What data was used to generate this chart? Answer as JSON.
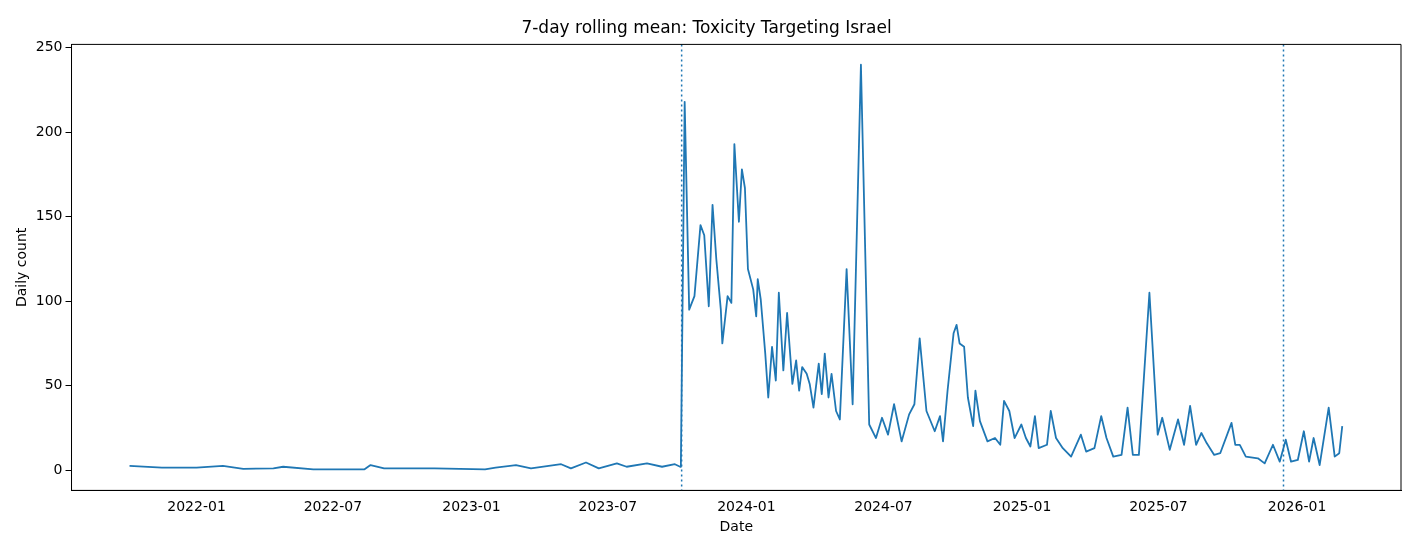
{
  "chart_data": {
    "type": "line",
    "title": "7-day rolling mean: Toxicity Targeting Israel",
    "xlabel": "Date",
    "ylabel": "Daily count",
    "x": [
      "2021-10-04",
      "2021-11-16",
      "2022-01-01",
      "2022-02-05",
      "2022-03-04",
      "2022-04-13",
      "2022-04-26",
      "2022-06-05",
      "2022-08-12",
      "2022-08-20",
      "2022-09-07",
      "2022-11-13",
      "2023-01-19",
      "2023-02-02",
      "2023-03-01",
      "2023-03-21",
      "2023-04-30",
      "2023-05-13",
      "2023-06-02",
      "2023-06-19",
      "2023-07-13",
      "2023-07-26",
      "2023-08-22",
      "2023-09-11",
      "2023-09-28",
      "2023-10-05",
      "2023-10-06",
      "2023-10-11",
      "2023-10-17",
      "2023-10-24",
      "2023-11-01",
      "2023-11-06",
      "2023-11-12",
      "2023-11-17",
      "2023-11-22",
      "2023-11-28",
      "2023-11-30",
      "2023-12-07",
      "2023-12-12",
      "2023-12-16",
      "2023-12-22",
      "2023-12-26",
      "2023-12-30",
      "2024-01-03",
      "2024-01-10",
      "2024-01-14",
      "2024-01-16",
      "2024-01-20",
      "2024-01-26",
      "2024-01-30",
      "2024-02-04",
      "2024-02-09",
      "2024-02-13",
      "2024-02-19",
      "2024-02-24",
      "2024-03-02",
      "2024-03-07",
      "2024-03-11",
      "2024-03-15",
      "2024-03-21",
      "2024-03-25",
      "2024-03-30",
      "2024-04-06",
      "2024-04-10",
      "2024-04-14",
      "2024-04-19",
      "2024-04-23",
      "2024-04-29",
      "2024-05-04",
      "2024-05-13",
      "2024-05-21",
      "2024-06-01",
      "2024-06-12",
      "2024-06-21",
      "2024-06-29",
      "2024-07-07",
      "2024-07-15",
      "2024-07-25",
      "2024-08-04",
      "2024-08-11",
      "2024-08-18",
      "2024-08-27",
      "2024-09-07",
      "2024-09-14",
      "2024-09-18",
      "2024-09-24",
      "2024-10-02",
      "2024-10-06",
      "2024-10-10",
      "2024-10-16",
      "2024-10-21",
      "2024-10-28",
      "2024-10-31",
      "2024-11-06",
      "2024-11-16",
      "2024-11-26",
      "2024-12-03",
      "2024-12-08",
      "2024-12-15",
      "2024-12-22",
      "2024-12-31",
      "2025-01-06",
      "2025-01-12",
      "2025-01-18",
      "2025-01-23",
      "2025-02-03",
      "2025-02-08",
      "2025-02-15",
      "2025-02-24",
      "2025-03-07",
      "2025-03-20",
      "2025-03-27",
      "2025-04-07",
      "2025-04-16",
      "2025-04-23",
      "2025-05-02",
      "2025-05-13",
      "2025-05-21",
      "2025-05-28",
      "2025-06-05",
      "2025-06-19",
      "2025-06-30",
      "2025-07-06",
      "2025-07-16",
      "2025-07-27",
      "2025-08-04",
      "2025-08-12",
      "2025-08-20",
      "2025-08-27",
      "2025-09-03",
      "2025-09-13",
      "2025-09-21",
      "2025-10-06",
      "2025-10-11",
      "2025-10-17",
      "2025-10-25",
      "2025-11-10",
      "2025-11-19",
      "2025-11-30",
      "2025-12-09",
      "2025-12-17",
      "2025-12-24",
      "2026-01-02",
      "2026-01-10",
      "2026-01-17",
      "2026-01-23",
      "2026-01-31",
      "2026-02-12",
      "2026-02-20",
      "2026-02-26",
      "2026-03-02"
    ],
    "series": [
      {
        "color": "#1f77b4",
        "values": [
          2.5,
          1.5,
          1.5,
          2.5,
          0.8,
          1,
          2,
          0.5,
          0.5,
          3,
          1,
          1,
          0.5,
          1.5,
          3,
          1,
          3.5,
          1,
          4.5,
          1,
          4,
          2,
          4,
          2,
          3.5,
          2,
          4,
          218,
          95,
          103,
          145,
          139,
          97,
          157,
          125,
          95,
          75,
          103,
          99,
          193,
          147,
          178,
          167,
          119,
          107,
          91,
          113,
          101,
          69,
          43,
          73,
          53,
          105,
          59,
          93,
          51,
          65,
          47,
          61,
          57,
          51,
          37,
          63,
          45,
          69,
          43,
          57,
          35,
          30,
          119,
          39,
          240,
          27,
          19,
          31,
          21,
          39,
          17,
          33,
          39,
          78,
          35,
          23,
          32,
          17,
          47,
          81,
          86,
          75,
          73,
          43,
          26,
          47,
          29,
          17,
          19,
          15,
          41,
          35,
          19,
          27,
          19,
          14,
          32,
          13,
          15,
          35,
          19,
          13,
          8,
          21,
          11,
          13,
          32,
          19,
          8,
          9,
          37,
          9,
          9,
          105,
          21,
          31,
          12,
          30,
          15,
          38,
          15,
          22,
          16,
          9,
          10,
          28,
          15,
          15,
          8,
          7,
          4,
          15,
          5,
          18,
          5,
          6,
          23,
          5,
          19,
          3,
          37,
          8,
          10,
          26
        ]
      }
    ],
    "xlim": [
      "2021-07-19",
      "2026-05-19"
    ],
    "xticks": [
      "2022-01",
      "2022-07",
      "2023-01",
      "2023-07",
      "2024-01",
      "2024-07",
      "2025-01",
      "2025-07",
      "2026-01"
    ],
    "ylim": [
      -12,
      252
    ],
    "yticks": [
      0,
      50,
      100,
      150,
      200,
      250
    ],
    "ref_lines": [
      {
        "axis": "x",
        "value": "2023-10-07",
        "color": "#1f77b4",
        "line_style": "dotted"
      },
      {
        "axis": "x",
        "value": "2025-12-14",
        "color": "#1f77b4",
        "line_style": "dotted"
      }
    ],
    "grid": false,
    "legend": false,
    "marker": "none",
    "line_style": "solid"
  }
}
